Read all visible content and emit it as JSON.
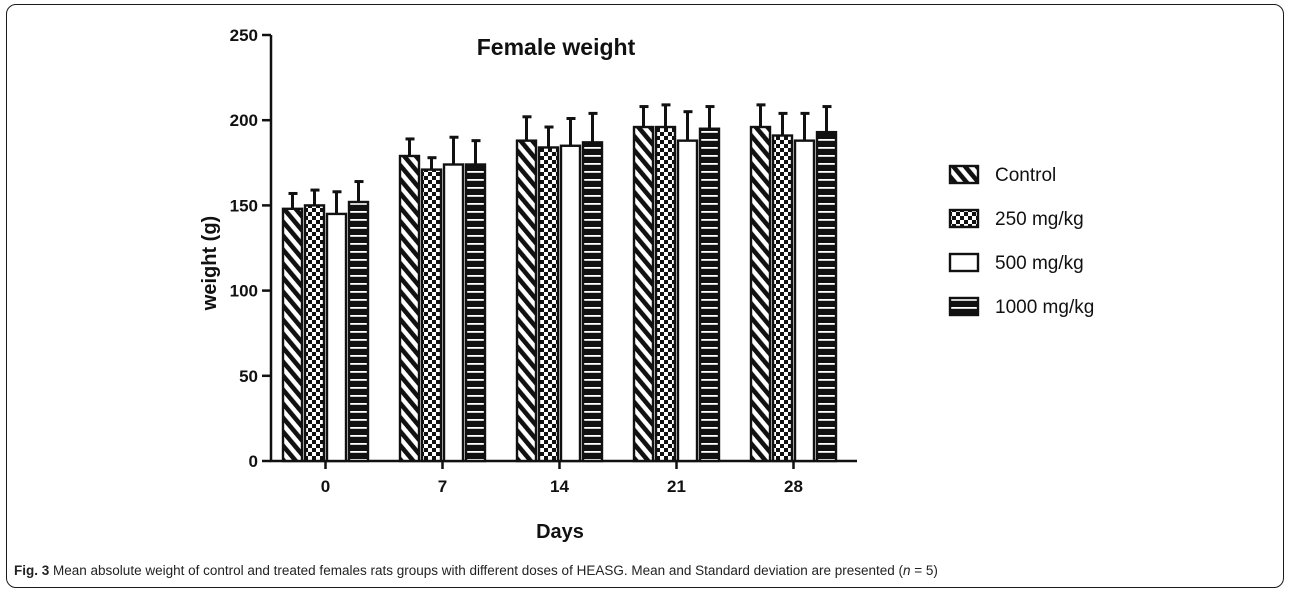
{
  "chart_data": {
    "type": "bar",
    "title": "Female weight",
    "xlabel": "Days",
    "ylabel": "weight (g)",
    "ylim": [
      0,
      250
    ],
    "yticks": [
      0,
      50,
      100,
      150,
      200,
      250
    ],
    "categories": [
      "0",
      "7",
      "14",
      "21",
      "28"
    ],
    "error_bars": "standard deviation (upper)",
    "legend_position": "right",
    "series": [
      {
        "name": "Control",
        "pattern": "diagonal-stripes",
        "values": [
          148,
          179,
          188,
          196,
          196
        ],
        "errors": [
          9,
          10,
          14,
          12,
          13
        ]
      },
      {
        "name": "250 mg/kg",
        "pattern": "checkerboard",
        "values": [
          150,
          171,
          184,
          196,
          191
        ],
        "errors": [
          9,
          7,
          12,
          13,
          13
        ]
      },
      {
        "name": "500 mg/kg",
        "pattern": "open",
        "values": [
          145,
          174,
          185,
          188,
          188
        ],
        "errors": [
          13,
          16,
          16,
          17,
          16
        ]
      },
      {
        "name": "1000 mg/kg",
        "pattern": "horizontal-stripes",
        "values": [
          152,
          174,
          187,
          195,
          193
        ],
        "errors": [
          12,
          14,
          17,
          13,
          15
        ]
      }
    ]
  },
  "caption": {
    "label": "Fig. 3",
    "text_before_n": " Mean absolute weight of control and treated females rats groups with different doses of HEASG. Mean and Standard deviation are presented (",
    "n_symbol": "n",
    "text_after_n": " = 5)"
  }
}
